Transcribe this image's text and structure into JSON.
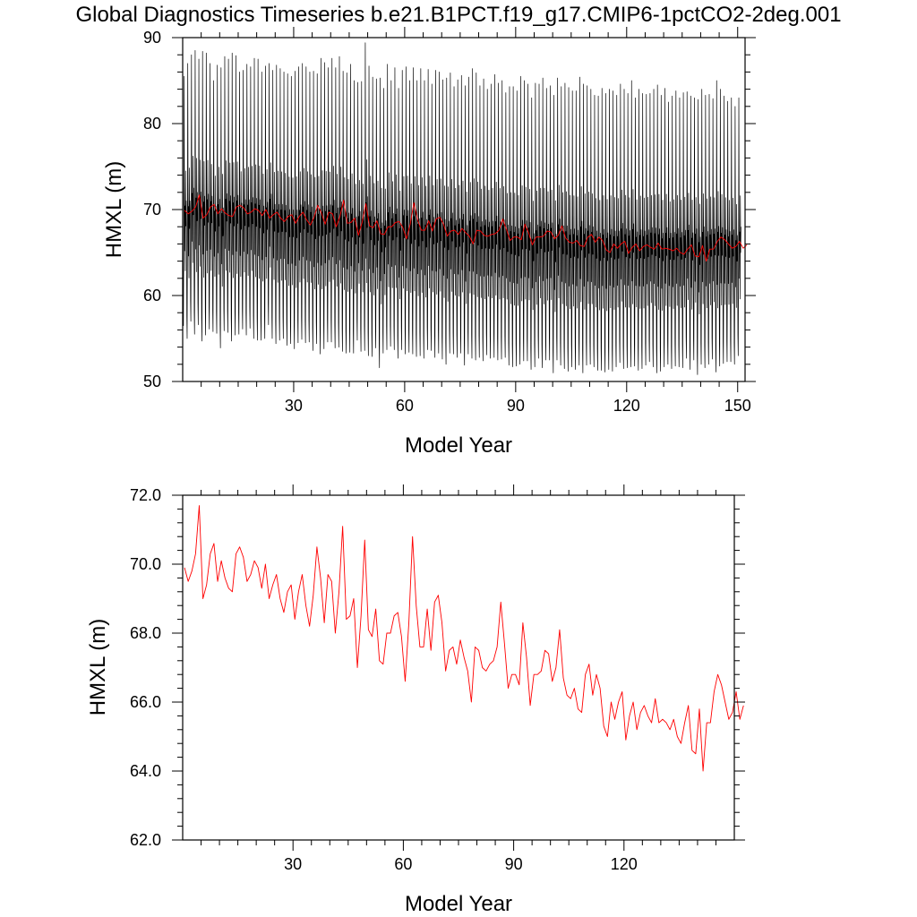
{
  "figure": {
    "title": "Global Diagnostics Timeseries b.e21.B1PCT.f19_g17.CMIP6-1pctCO2-2deg.001"
  },
  "chart_data": [
    {
      "type": "line",
      "xlabel": "Model Year",
      "ylabel": "HMXL (m)",
      "xlim": [
        0,
        152
      ],
      "ylim": [
        50,
        90
      ],
      "xticks": [
        30,
        60,
        90,
        120,
        150
      ],
      "xtick_labels": [
        "30",
        "60",
        "90",
        "120",
        "150"
      ],
      "yticks": [
        50,
        60,
        70,
        80,
        90
      ],
      "ytick_labels": [
        "50",
        "60",
        "70",
        "80",
        "90"
      ],
      "grid": false,
      "colors": {
        "monthly": "#000000",
        "annual": "#ff0000"
      },
      "series": [
        {
          "role": "monthly",
          "kind": "seasonal-cycle",
          "x_start": 0.04,
          "step": 0.0833,
          "annual_max": [
            85.5,
            87.0,
            88.0,
            88.5,
            87.5,
            88.4,
            88.2,
            87.0,
            85.0,
            86.8,
            86.5,
            87.8,
            87.5,
            88.2,
            87.9,
            86.0,
            86.2,
            86.9,
            86.6,
            87.6,
            87.5,
            86.0,
            86.7,
            87.0,
            86.2,
            86.8,
            86.4,
            86.0,
            85.8,
            85.5,
            86.1,
            86.6,
            87.0,
            86.6,
            86.0,
            86.1,
            85.8,
            87.6,
            87.1,
            86.5,
            87.6,
            86.5,
            87.8,
            86.1,
            85.9,
            86.9,
            85.0,
            84.8,
            84.9,
            89.4,
            86.7,
            85.4,
            85.2,
            85.3,
            84.1,
            86.9,
            85.0,
            86.5,
            84.1,
            86.2,
            86.6,
            85.0,
            86.5,
            85.0,
            86.4,
            85.0,
            86.3,
            84.6,
            86.2,
            86.0,
            85.1,
            85.3,
            85.9,
            84.3,
            85.1,
            85.6,
            84.4,
            85.4,
            86.4,
            85.9,
            84.4,
            85.2,
            84.0,
            84.6,
            85.7,
            84.7,
            85.0,
            83.6,
            84.3,
            84.3,
            83.8,
            85.5,
            85.0,
            84.6,
            83.0,
            84.7,
            84.6,
            85.3,
            84.1,
            84.4,
            83.3,
            85.3,
            84.3,
            84.7,
            84.2,
            83.8,
            83.8,
            85.4,
            84.6,
            84.4,
            84.0,
            83.3,
            83.2,
            84.1,
            83.5,
            84.0,
            83.8,
            83.3,
            84.6,
            84.0,
            83.5,
            85.0,
            83.0,
            84.0,
            83.5,
            83.4,
            83.5,
            84.0,
            84.5,
            83.3,
            84.1,
            82.5,
            83.2,
            83.8,
            83.0,
            83.6,
            83.7,
            83.2,
            83.0,
            82.8,
            84.0,
            83.3,
            83.4,
            82.9,
            85.0,
            84.0,
            83.2,
            82.6,
            83.0,
            82.0,
            83.0
          ],
          "annual_min": [
            56.5,
            55.0,
            57.0,
            55.5,
            56.6,
            54.7,
            55.4,
            56.1,
            55.8,
            55.6,
            53.9,
            55.9,
            55.7,
            54.7,
            55.4,
            55.5,
            56.1,
            55.4,
            56.2,
            55.0,
            54.8,
            54.8,
            55.0,
            56.6,
            55.0,
            54.4,
            54.8,
            55.0,
            54.2,
            54.4,
            53.8,
            54.5,
            54.9,
            54.5,
            54.6,
            53.6,
            54.4,
            53.2,
            53.8,
            54.6,
            54.6,
            53.9,
            54.0,
            53.5,
            53.3,
            53.4,
            53.3,
            54.8,
            53.5,
            53.6,
            53.0,
            52.9,
            53.9,
            51.6,
            53.3,
            53.7,
            54.1,
            53.7,
            52.7,
            53.7,
            53.2,
            53.4,
            53.2,
            52.9,
            53.0,
            52.7,
            53.7,
            53.6,
            52.8,
            53.3,
            52.6,
            52.0,
            53.3,
            53.2,
            52.8,
            53.3,
            51.9,
            53.2,
            52.7,
            52.5,
            52.8,
            52.4,
            53.1,
            52.7,
            52.8,
            52.5,
            52.6,
            52.8,
            51.9,
            51.7,
            51.8,
            52.0,
            52.4,
            52.4,
            51.4,
            51.7,
            52.7,
            51.6,
            52.5,
            52.5,
            51.0,
            52.5,
            51.9,
            51.5,
            51.2,
            51.7,
            51.4,
            51.9,
            51.0,
            51.9,
            52.0,
            51.7,
            51.3,
            51.3,
            51.1,
            51.4,
            51.2,
            51.7,
            52.2,
            51.5,
            51.6,
            51.7,
            51.8,
            51.3,
            51.5,
            51.9,
            52.3,
            51.7,
            51.0,
            51.2,
            51.7,
            52.0,
            51.5,
            51.8,
            51.7,
            51.6,
            52.7,
            51.4,
            52.5,
            50.8,
            52.0,
            51.6,
            52.0,
            52.6,
            51.1,
            51.8,
            52.1,
            52.3,
            52.3,
            52.0,
            53.0
          ]
        },
        {
          "role": "annual",
          "x_start": 0.5,
          "step": 1,
          "values": [
            69.9,
            69.5,
            69.8,
            70.3,
            71.7,
            69.0,
            69.4,
            70.3,
            70.6,
            69.5,
            70.1,
            69.6,
            69.3,
            69.2,
            70.3,
            70.5,
            70.2,
            69.5,
            69.7,
            70.1,
            69.9,
            69.3,
            70.0,
            69.0,
            69.4,
            69.7,
            69.0,
            68.6,
            69.2,
            69.4,
            68.4,
            69.2,
            69.7,
            68.8,
            68.2,
            69.1,
            70.5,
            69.6,
            68.3,
            69.7,
            69.5,
            68.0,
            69.2,
            71.1,
            68.4,
            68.5,
            69.0,
            67.0,
            68.5,
            70.7,
            68.1,
            67.9,
            68.7,
            67.2,
            67.1,
            68.0,
            68.0,
            68.5,
            68.6,
            67.9,
            66.6,
            68.3,
            70.8,
            68.8,
            67.6,
            67.6,
            68.7,
            67.5,
            68.9,
            69.1,
            68.3,
            66.9,
            67.5,
            67.6,
            67.1,
            67.8,
            67.3,
            66.9,
            66.0,
            67.6,
            67.5,
            67.0,
            66.9,
            67.1,
            67.2,
            67.6,
            68.9,
            67.7,
            66.4,
            66.8,
            66.8,
            66.5,
            68.3,
            67.3,
            65.9,
            66.8,
            66.8,
            66.9,
            67.5,
            67.4,
            66.6,
            67.0,
            68.1,
            66.7,
            66.2,
            66.1,
            66.4,
            65.8,
            65.7,
            66.8,
            67.1,
            66.2,
            66.8,
            66.4,
            65.3,
            65.0,
            66.0,
            65.5,
            66.0,
            66.3,
            64.9,
            65.6,
            66.0,
            65.2,
            65.7,
            65.9,
            65.6,
            65.4,
            66.1,
            65.4,
            65.5,
            65.4,
            65.2,
            65.5,
            65.0,
            64.8,
            65.4,
            65.9,
            64.6,
            64.5,
            65.8,
            64.0,
            65.4,
            65.4,
            66.3,
            66.8,
            66.5,
            66.0,
            65.5,
            65.7,
            66.3,
            65.5,
            65.9
          ]
        }
      ]
    },
    {
      "type": "line",
      "xlabel": "Model Year",
      "ylabel": "HMXL (m)",
      "xlim": [
        0,
        150
      ],
      "ylim": [
        62,
        72
      ],
      "xticks": [
        30,
        60,
        90,
        120
      ],
      "xtick_labels": [
        "30",
        "60",
        "90",
        "120"
      ],
      "yticks": [
        62,
        64,
        66,
        68,
        70,
        72
      ],
      "ytick_labels": [
        "62.0",
        "64.0",
        "66.0",
        "68.0",
        "70.0",
        "72.0"
      ],
      "grid": false,
      "colors": {
        "annual": "#ff0000"
      },
      "series": [
        {
          "role": "annual",
          "x_start": 0.5,
          "step": 1,
          "values": [
            69.9,
            69.5,
            69.8,
            70.3,
            71.7,
            69.0,
            69.4,
            70.3,
            70.6,
            69.5,
            70.1,
            69.6,
            69.3,
            69.2,
            70.3,
            70.5,
            70.2,
            69.5,
            69.7,
            70.1,
            69.9,
            69.3,
            70.0,
            69.0,
            69.4,
            69.7,
            69.0,
            68.6,
            69.2,
            69.4,
            68.4,
            69.2,
            69.7,
            68.8,
            68.2,
            69.1,
            70.5,
            69.6,
            68.3,
            69.7,
            69.5,
            68.0,
            69.2,
            71.1,
            68.4,
            68.5,
            69.0,
            67.0,
            68.5,
            70.7,
            68.1,
            67.9,
            68.7,
            67.2,
            67.1,
            68.0,
            68.0,
            68.5,
            68.6,
            67.9,
            66.6,
            68.3,
            70.8,
            68.8,
            67.6,
            67.6,
            68.7,
            67.5,
            68.9,
            69.1,
            68.3,
            66.9,
            67.5,
            67.6,
            67.1,
            67.8,
            67.3,
            66.9,
            66.0,
            67.6,
            67.5,
            67.0,
            66.9,
            67.1,
            67.2,
            67.6,
            68.9,
            67.7,
            66.4,
            66.8,
            66.8,
            66.5,
            68.3,
            67.3,
            65.9,
            66.8,
            66.8,
            66.9,
            67.5,
            67.4,
            66.6,
            67.0,
            68.1,
            66.7,
            66.2,
            66.1,
            66.4,
            65.8,
            65.7,
            66.8,
            67.1,
            66.2,
            66.8,
            66.4,
            65.3,
            65.0,
            66.0,
            65.5,
            66.0,
            66.3,
            64.9,
            65.6,
            66.0,
            65.2,
            65.7,
            65.9,
            65.6,
            65.4,
            66.1,
            65.4,
            65.5,
            65.4,
            65.2,
            65.5,
            65.0,
            64.8,
            65.4,
            65.9,
            64.6,
            64.5,
            65.8,
            64.0,
            65.4,
            65.4,
            66.3,
            66.8,
            66.5,
            66.0,
            65.5,
            65.7,
            66.3,
            65.5,
            65.9
          ]
        }
      ]
    }
  ]
}
